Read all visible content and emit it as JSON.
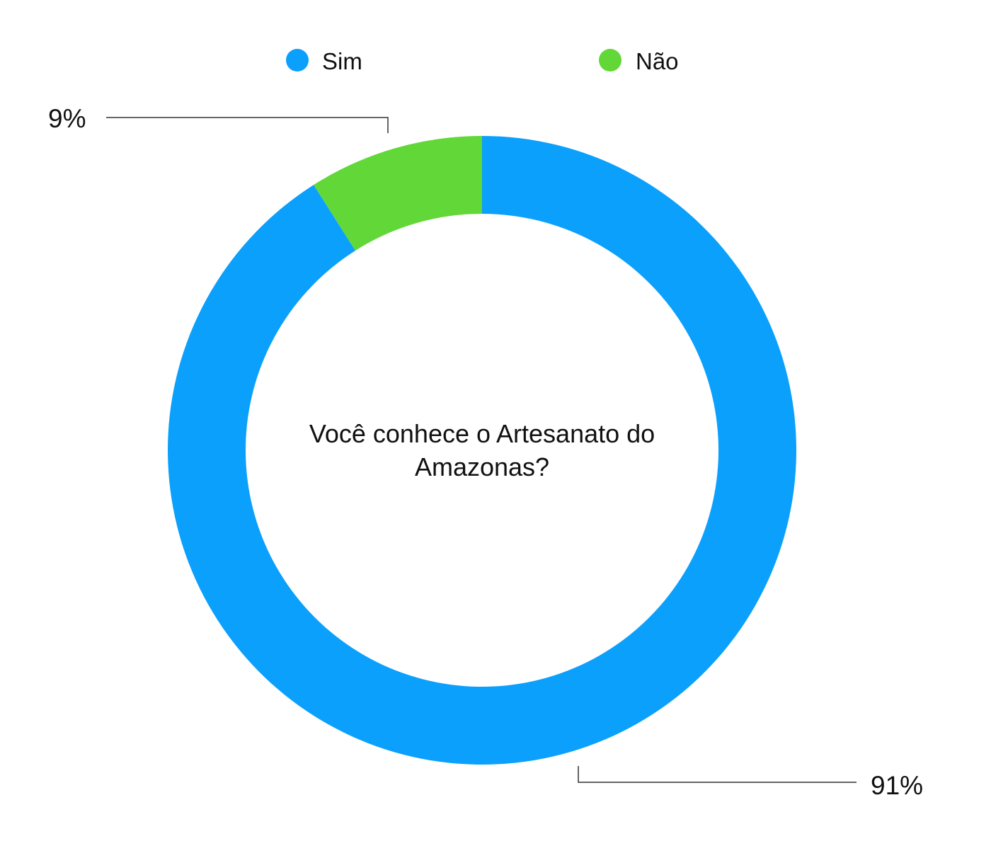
{
  "chart_data": {
    "type": "pie",
    "variant": "donut",
    "title": "Você conhece o Artesanato do Amazonas?",
    "title_lines": [
      "Você conhece o Artesanato do",
      "Amazonas?"
    ],
    "legend_position": "top",
    "slices": [
      {
        "label": "Sim",
        "value": 91,
        "value_label": "91%",
        "color": "#0BA0FC"
      },
      {
        "label": "Não",
        "value": 9,
        "value_label": "9%",
        "color": "#62D838"
      }
    ]
  }
}
